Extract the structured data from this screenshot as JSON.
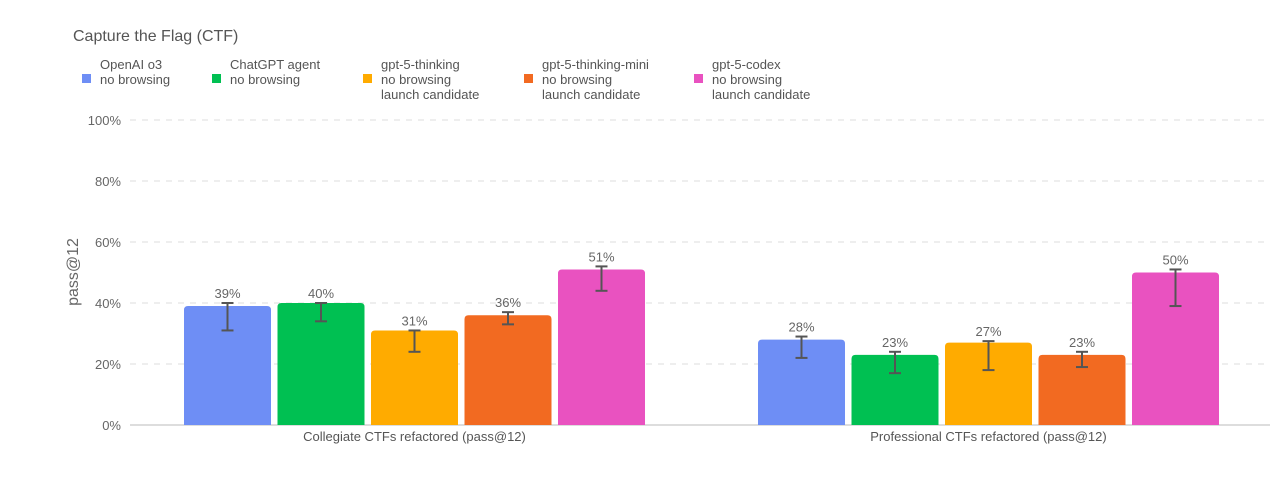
{
  "chart_data": {
    "type": "bar",
    "title": "Capture the Flag (CTF)",
    "ylabel": "pass@12",
    "xlabel": "",
    "ylim": [
      0,
      100
    ],
    "yticks": [
      "0%",
      "20%",
      "40%",
      "60%",
      "80%",
      "100%"
    ],
    "grid": true,
    "legend_position": "top-left",
    "categories": [
      "Collegiate CTFs refactored (pass@12)",
      "Professional CTFs refactored (pass@12)"
    ],
    "series": [
      {
        "name": "OpenAI o3\nno browsing",
        "color": "#6e8ef5",
        "values": [
          39,
          28
        ],
        "labels": [
          "39%",
          "28%"
        ],
        "err_low": [
          31,
          22
        ],
        "err_high": [
          40,
          29
        ]
      },
      {
        "name": "ChatGPT agent\nno browsing",
        "color": "#00c052",
        "values": [
          40,
          23
        ],
        "labels": [
          "40%",
          "23%"
        ],
        "err_low": [
          34,
          17
        ],
        "err_high": [
          40,
          24
        ]
      },
      {
        "name": "gpt-5-thinking\nno browsing\nlaunch candidate",
        "color": "#ffab00",
        "values": [
          31,
          27
        ],
        "labels": [
          "31%",
          "27%"
        ],
        "err_low": [
          24,
          18
        ],
        "err_high": [
          31,
          27.5
        ]
      },
      {
        "name": "gpt-5-thinking-mini\nno browsing\nlaunch candidate",
        "color": "#f26a21",
        "values": [
          36,
          23
        ],
        "labels": [
          "36%",
          "23%"
        ],
        "err_low": [
          33,
          19
        ],
        "err_high": [
          37,
          24
        ]
      },
      {
        "name": "gpt-5-codex\nno browsing\nlaunch candidate",
        "color": "#e952c0",
        "values": [
          51,
          50
        ],
        "labels": [
          "51%",
          "50%"
        ],
        "err_low": [
          44,
          39
        ],
        "err_high": [
          52,
          51
        ]
      }
    ]
  }
}
